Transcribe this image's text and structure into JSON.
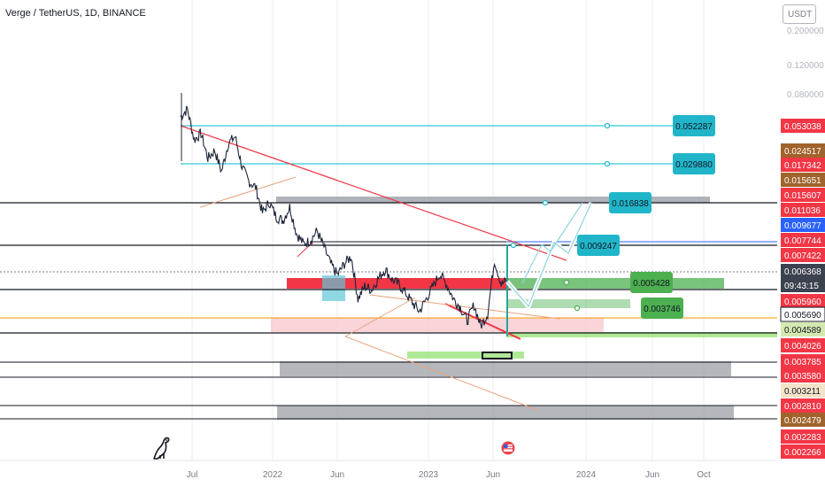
{
  "header": {
    "symbol_title": "Verge / TetherUS, 1D, BINANCE",
    "unit_label": "USDT"
  },
  "colors": {
    "candle": "#1b2438",
    "grid_line": "#e9ecf1",
    "trend_red": "#f23645",
    "trend_orange": "#e8a27a",
    "cyan": "#00bcd4",
    "target_teal": "#21b5c9",
    "green_box": "#4caf50",
    "red_zone": "#f23645",
    "gray_zone": "#9598a1",
    "orange_line": "#ff9800",
    "blue_line": "#2962ff"
  },
  "chart_data": {
    "type": "line",
    "title": "Verge / TetherUS, 1D, BINANCE",
    "y_scale": "log",
    "ylim": [
      0.0021,
      0.33
    ],
    "x_tick_labels": [
      "Jul",
      "2022",
      "Jun",
      "2023",
      "Jun",
      "2024",
      "Jun",
      "Oct"
    ],
    "y_tick_labels": [
      "0.200000",
      "0.120000",
      "0.080000"
    ],
    "series": [
      {
        "values": [
          0.035,
          0.038,
          0.027,
          0.029,
          0.022,
          0.024,
          0.019,
          0.026,
          0.028,
          0.02,
          0.017,
          0.016,
          0.012,
          0.0135,
          0.0115,
          0.011,
          0.0128,
          0.0095,
          0.0085,
          0.0088,
          0.0098,
          0.0082,
          0.0068,
          0.006,
          0.0068,
          0.0074,
          0.0046,
          0.0053,
          0.0051,
          0.0058,
          0.0064,
          0.0057,
          0.0054,
          0.0049,
          0.0044,
          0.004,
          0.0046,
          0.0053,
          0.0061,
          0.0054,
          0.0046,
          0.0042,
          0.0036,
          0.0043,
          0.0034,
          0.0039,
          0.0071,
          0.0054,
          0.0057
        ]
      }
    ],
    "price_labels": [
      {
        "text": "0.053038",
        "color": "#f23645"
      },
      {
        "text": "0.024517",
        "color": "#a0632b"
      },
      {
        "text": "0.017342",
        "color": "#f23645"
      },
      {
        "text": "0.015651",
        "color": "#a0632b"
      },
      {
        "text": "0.015607",
        "color": "#f23645"
      },
      {
        "text": "0.011036",
        "color": "#f23645"
      },
      {
        "text": "0.009677",
        "color": "#2962ff"
      },
      {
        "text": "0.007744",
        "color": "#f23645"
      },
      {
        "text": "0.007422",
        "color": "#f23645"
      },
      {
        "text": "0.006368",
        "color": "#3d4250"
      },
      {
        "text": "09:43:15",
        "color": "#3d4250"
      },
      {
        "text": "0.005960",
        "color": "#f23645"
      },
      {
        "text": "0.005690",
        "color": "#000000"
      },
      {
        "text": "0.004589",
        "color": "#d4e9b0"
      },
      {
        "text": "0.004026",
        "color": "#f23645"
      },
      {
        "text": "0.003785",
        "color": "#f23645"
      },
      {
        "text": "0.003580",
        "color": "#f23645"
      },
      {
        "text": "0.003211",
        "color": "#f3e3c9"
      },
      {
        "text": "0.002810",
        "color": "#f23645"
      },
      {
        "text": "0.002479",
        "color": "#a0632b"
      },
      {
        "text": "0.002283",
        "color": "#f23645"
      },
      {
        "text": "0.002266",
        "color": "#f23645"
      }
    ],
    "target_labels": [
      {
        "text": "0.052287",
        "color": "#21b5c9"
      },
      {
        "text": "0.029880",
        "color": "#21b5c9"
      },
      {
        "text": "0.016838",
        "color": "#21b5c9"
      },
      {
        "text": "0.009247",
        "color": "#21b5c9"
      },
      {
        "text": "0.005428",
        "color": "#4caf50"
      },
      {
        "text": "0.003746",
        "color": "#4caf50"
      }
    ]
  }
}
